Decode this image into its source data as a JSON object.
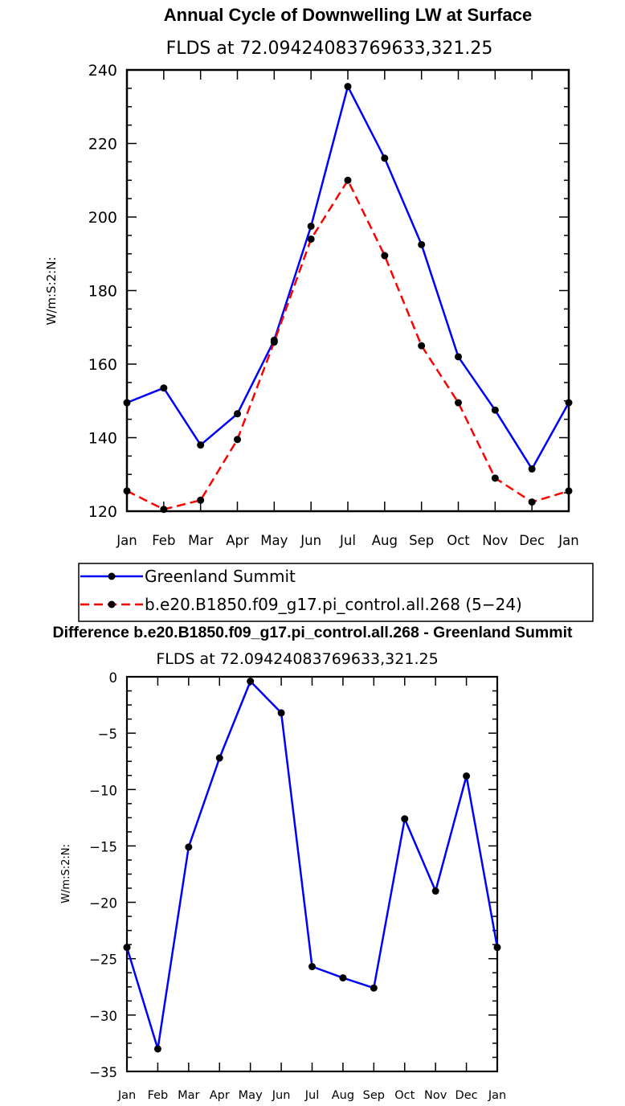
{
  "chart_data": [
    {
      "type": "line",
      "title": "Annual Cycle of Downwelling LW at Surface",
      "subtitle": "FLDS at 72.09424083769633,321.25",
      "xlabel": "",
      "ylabel": "W/m:S:2:N:",
      "categories": [
        "Jan",
        "Feb",
        "Mar",
        "Apr",
        "May",
        "Jun",
        "Jul",
        "Aug",
        "Sep",
        "Oct",
        "Nov",
        "Dec",
        "Jan"
      ],
      "ylim": [
        120,
        240
      ],
      "yticks": [
        120,
        140,
        160,
        180,
        200,
        220,
        240
      ],
      "series": [
        {
          "name": "Greenland Summit",
          "color": "#0000ff",
          "dash": "solid",
          "values": [
            149.5,
            153.5,
            138,
            146.5,
            166.5,
            197.5,
            235.5,
            216,
            192.5,
            162,
            147.5,
            131.5,
            149.5
          ]
        },
        {
          "name": "b.e20.B1850.f09_g17.pi_control.all.268 (5−24)",
          "color": "#ff0000",
          "dash": "dashed",
          "values": [
            125.5,
            120.5,
            123,
            139.5,
            166,
            194,
            210,
            189.5,
            165,
            149.5,
            129,
            122.5,
            125.5
          ]
        }
      ],
      "legend_position": "below"
    },
    {
      "type": "line",
      "title": "Difference b.e20.B1850.f09_g17.pi_control.all.268 - Greenland Summit",
      "subtitle": "FLDS at 72.09424083769633,321.25",
      "xlabel": "",
      "ylabel": "W/m:S:2:N:",
      "categories": [
        "Jan",
        "Feb",
        "Mar",
        "Apr",
        "May",
        "Jun",
        "Jul",
        "Aug",
        "Sep",
        "Oct",
        "Nov",
        "Dec",
        "Jan"
      ],
      "ylim": [
        -35,
        0
      ],
      "yticks": [
        0,
        -5,
        -10,
        -15,
        -20,
        -25,
        -30,
        -35
      ],
      "series": [
        {
          "name": "Difference",
          "color": "#0000ff",
          "dash": "solid",
          "values": [
            -24,
            -33,
            -15.1,
            -7.2,
            -0.4,
            -3.2,
            -25.7,
            -26.7,
            -27.6,
            -12.6,
            -19,
            -8.8,
            -24
          ]
        }
      ]
    }
  ]
}
